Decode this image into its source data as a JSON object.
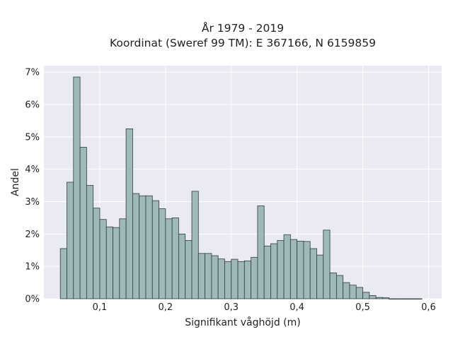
{
  "chart_data": {
    "type": "bar",
    "title": "År 1979 - 2019",
    "subtitle": "Koordinat (Sweref 99 TM): E 367166, N 6159859",
    "xlabel": "Signifikant våghöjd (m)",
    "ylabel": "Andel",
    "xlim": [
      0.015,
      0.62
    ],
    "ylim": [
      0,
      7.2
    ],
    "grid": true,
    "x_ticks": [
      {
        "value": 0.1,
        "label": "0,1"
      },
      {
        "value": 0.2,
        "label": "0,2"
      },
      {
        "value": 0.3,
        "label": "0,3"
      },
      {
        "value": 0.4,
        "label": "0,4"
      },
      {
        "value": 0.5,
        "label": "0,5"
      },
      {
        "value": 0.6,
        "label": "0,6"
      }
    ],
    "y_ticks": [
      {
        "value": 0,
        "label": "0%"
      },
      {
        "value": 1,
        "label": "1%"
      },
      {
        "value": 2,
        "label": "2%"
      },
      {
        "value": 3,
        "label": "3%"
      },
      {
        "value": 4,
        "label": "4%"
      },
      {
        "value": 5,
        "label": "5%"
      },
      {
        "value": 6,
        "label": "6%"
      },
      {
        "value": 7,
        "label": "7%"
      }
    ],
    "bin_width": 0.01,
    "bin_starts": [
      0.04,
      0.05,
      0.06,
      0.07,
      0.08,
      0.09,
      0.1,
      0.11,
      0.12,
      0.13,
      0.14,
      0.15,
      0.16,
      0.17,
      0.18,
      0.19,
      0.2,
      0.21,
      0.22,
      0.23,
      0.24,
      0.25,
      0.26,
      0.27,
      0.28,
      0.29,
      0.3,
      0.31,
      0.32,
      0.33,
      0.34,
      0.35,
      0.36,
      0.37,
      0.38,
      0.39,
      0.4,
      0.41,
      0.42,
      0.43,
      0.44,
      0.45,
      0.46,
      0.47,
      0.48,
      0.49,
      0.5,
      0.51,
      0.52,
      0.53,
      0.54,
      0.55,
      0.56,
      0.57,
      0.58
    ],
    "values": [
      1.55,
      3.6,
      6.85,
      4.68,
      3.5,
      2.8,
      2.45,
      2.22,
      2.2,
      2.47,
      5.25,
      3.25,
      3.18,
      3.18,
      3.03,
      2.78,
      2.47,
      2.5,
      2.0,
      1.8,
      3.32,
      1.4,
      1.4,
      1.33,
      1.23,
      1.15,
      1.22,
      1.15,
      1.17,
      1.28,
      2.87,
      1.63,
      1.7,
      1.8,
      1.98,
      1.83,
      1.78,
      1.77,
      1.55,
      1.35,
      2.12,
      0.8,
      0.72,
      0.5,
      0.42,
      0.35,
      0.2,
      0.1,
      0.04,
      0.03,
      0.0,
      0.0,
      0.0,
      0.0,
      0.0
    ],
    "colors": {
      "background": "#eaeaf2",
      "grid": "#ffffff",
      "bar_fill": "#9fb8b8",
      "bar_stroke": "#2f3d3d"
    }
  }
}
